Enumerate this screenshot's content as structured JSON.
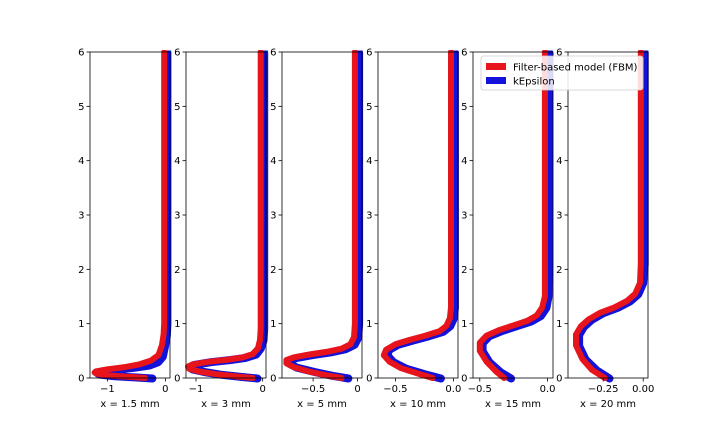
{
  "chart_data": {
    "type": "line",
    "y_range": [
      0,
      6
    ],
    "y_ticks": [
      0,
      1,
      2,
      3,
      4,
      5,
      6
    ],
    "grid": false,
    "legend": {
      "placement": "top-right",
      "entries": [
        {
          "label": "Filter-based model (FBM)",
          "color": "#e8141c"
        },
        {
          "label": "kEpsilon",
          "color": "#1212d8"
        }
      ]
    },
    "panels": [
      {
        "xlabel": "x = 1.5 mm",
        "xlim": [
          -1.3,
          0.08
        ],
        "x_ticks": [
          {
            "v": -1,
            "t": "−1"
          },
          {
            "v": 0,
            "t": "0"
          }
        ],
        "series": [
          {
            "name": "Filter-based model (FBM)",
            "x": [
              -0.35,
              -0.6,
              -0.9,
              -1.15,
              -1.22,
              -1.2,
              -1.0,
              -0.7,
              -0.45,
              -0.25,
              -0.12,
              -0.06,
              -0.03,
              -0.02,
              -0.02,
              -0.02,
              -0.02,
              -0.02
            ],
            "y": [
              0.0,
              0.02,
              0.04,
              0.07,
              0.1,
              0.12,
              0.16,
              0.2,
              0.25,
              0.32,
              0.42,
              0.6,
              0.8,
              1.0,
              1.25,
              2.0,
              4.0,
              6.0
            ]
          },
          {
            "name": "kEpsilon",
            "x": [
              -0.25,
              -0.55,
              -0.9,
              -1.15,
              -1.2,
              -1.1,
              -0.85,
              -0.55,
              -0.3,
              -0.15,
              -0.07,
              -0.03,
              0.0,
              0.01,
              0.01,
              0.01,
              0.01,
              0.01
            ],
            "y": [
              0.0,
              0.02,
              0.04,
              0.07,
              0.1,
              0.13,
              0.16,
              0.2,
              0.24,
              0.3,
              0.4,
              0.6,
              0.8,
              1.0,
              1.25,
              2.0,
              4.0,
              6.0
            ]
          }
        ]
      },
      {
        "xlabel": "x = 3 mm",
        "xlim": [
          -1.15,
          0.05
        ],
        "x_ticks": [
          {
            "v": -1,
            "t": "−1"
          },
          {
            "v": 0,
            "t": "0"
          }
        ],
        "series": [
          {
            "name": "Filter-based model (FBM)",
            "x": [
              -0.15,
              -0.4,
              -0.7,
              -0.95,
              -1.1,
              -1.12,
              -1.05,
              -0.8,
              -0.5,
              -0.3,
              -0.15,
              -0.07,
              -0.04,
              -0.03,
              -0.03,
              -0.03,
              -0.03
            ],
            "y": [
              0.0,
              0.03,
              0.07,
              0.12,
              0.17,
              0.21,
              0.25,
              0.3,
              0.34,
              0.38,
              0.44,
              0.55,
              0.7,
              0.9,
              1.3,
              3.0,
              6.0
            ]
          },
          {
            "name": "kEpsilon",
            "x": [
              -0.1,
              -0.35,
              -0.65,
              -0.9,
              -1.08,
              -1.12,
              -1.05,
              -0.8,
              -0.5,
              -0.28,
              -0.12,
              -0.05,
              -0.01,
              0.0,
              0.0,
              0.0,
              0.0
            ],
            "y": [
              0.0,
              0.03,
              0.07,
              0.12,
              0.17,
              0.21,
              0.25,
              0.3,
              0.34,
              0.38,
              0.44,
              0.55,
              0.7,
              0.9,
              1.3,
              3.0,
              6.0
            ]
          }
        ]
      },
      {
        "xlabel": "x = 5 mm",
        "xlim": [
          -0.85,
          0.05
        ],
        "x_ticks": [
          {
            "v": -0.5,
            "t": "−0.5"
          },
          {
            "v": 0,
            "t": "0"
          }
        ],
        "series": [
          {
            "name": "Filter-based model (FBM)",
            "x": [
              -0.18,
              -0.35,
              -0.55,
              -0.72,
              -0.8,
              -0.8,
              -0.72,
              -0.55,
              -0.35,
              -0.18,
              -0.08,
              -0.04,
              -0.03,
              -0.03,
              -0.03,
              -0.03
            ],
            "y": [
              0.0,
              0.05,
              0.12,
              0.2,
              0.27,
              0.33,
              0.38,
              0.43,
              0.48,
              0.54,
              0.62,
              0.75,
              1.0,
              1.3,
              3.0,
              6.0
            ]
          },
          {
            "name": "kEpsilon",
            "x": [
              -0.12,
              -0.3,
              -0.5,
              -0.7,
              -0.78,
              -0.79,
              -0.7,
              -0.52,
              -0.32,
              -0.15,
              -0.05,
              -0.01,
              0.0,
              0.0,
              0.0,
              0.0
            ],
            "y": [
              0.0,
              0.05,
              0.12,
              0.2,
              0.27,
              0.33,
              0.38,
              0.43,
              0.48,
              0.54,
              0.62,
              0.75,
              1.0,
              1.3,
              3.0,
              6.0
            ]
          }
        ]
      },
      {
        "xlabel": "x = 10 mm",
        "xlim": [
          -0.65,
          0.04
        ],
        "x_ticks": [
          {
            "v": -0.5,
            "t": "−0.5"
          },
          {
            "v": 0,
            "t": "0.0"
          }
        ],
        "series": [
          {
            "name": "Filter-based model (FBM)",
            "x": [
              -0.18,
              -0.3,
              -0.45,
              -0.55,
              -0.6,
              -0.58,
              -0.5,
              -0.38,
              -0.24,
              -0.12,
              -0.06,
              -0.03,
              -0.02,
              -0.02,
              -0.02,
              -0.02
            ],
            "y": [
              0.0,
              0.08,
              0.18,
              0.3,
              0.42,
              0.52,
              0.62,
              0.7,
              0.78,
              0.86,
              0.96,
              1.1,
              1.3,
              1.6,
              3.0,
              6.0
            ]
          },
          {
            "name": "kEpsilon",
            "x": [
              -0.12,
              -0.26,
              -0.42,
              -0.53,
              -0.58,
              -0.57,
              -0.49,
              -0.36,
              -0.22,
              -0.1,
              -0.04,
              -0.01,
              0.0,
              0.0,
              0.0,
              0.0
            ],
            "y": [
              0.0,
              0.08,
              0.18,
              0.3,
              0.42,
              0.52,
              0.62,
              0.7,
              0.78,
              0.86,
              0.96,
              1.1,
              1.3,
              1.6,
              3.0,
              6.0
            ]
          }
        ]
      },
      {
        "xlabel": "x = 15 mm",
        "xlim": [
          -0.55,
          0.04
        ],
        "x_ticks": [
          {
            "v": -0.5,
            "t": "−0.5"
          },
          {
            "v": 0,
            "t": "0.0"
          }
        ],
        "series": [
          {
            "name": "Filter-based model (FBM)",
            "x": [
              -0.32,
              -0.38,
              -0.45,
              -0.5,
              -0.5,
              -0.45,
              -0.36,
              -0.25,
              -0.15,
              -0.08,
              -0.04,
              -0.02,
              -0.02,
              -0.02,
              -0.02
            ],
            "y": [
              0.0,
              0.12,
              0.3,
              0.5,
              0.65,
              0.78,
              0.88,
              0.97,
              1.05,
              1.15,
              1.3,
              1.5,
              1.9,
              3.0,
              6.0
            ]
          },
          {
            "name": "kEpsilon",
            "x": [
              -0.28,
              -0.36,
              -0.44,
              -0.49,
              -0.49,
              -0.44,
              -0.34,
              -0.23,
              -0.13,
              -0.06,
              -0.02,
              -0.005,
              0.0,
              0.0,
              0.0
            ],
            "y": [
              0.0,
              0.12,
              0.3,
              0.5,
              0.65,
              0.78,
              0.88,
              0.97,
              1.05,
              1.15,
              1.3,
              1.5,
              1.9,
              3.0,
              6.0
            ]
          }
        ]
      },
      {
        "xlabel": "x = 20 mm",
        "xlim": [
          -0.47,
          0.03
        ],
        "x_ticks": [
          {
            "v": -0.25,
            "t": "−0.25"
          },
          {
            "v": 0,
            "t": "0.00"
          }
        ],
        "series": [
          {
            "name": "Filter-based model (FBM)",
            "x": [
              -0.24,
              -0.32,
              -0.38,
              -0.42,
              -0.42,
              -0.39,
              -0.34,
              -0.27,
              -0.18,
              -0.1,
              -0.05,
              -0.02,
              -0.015,
              -0.015,
              -0.015
            ],
            "y": [
              0.0,
              0.15,
              0.35,
              0.6,
              0.8,
              0.95,
              1.08,
              1.2,
              1.3,
              1.42,
              1.55,
              1.75,
              2.1,
              3.5,
              6.0
            ]
          },
          {
            "name": "kEpsilon",
            "x": [
              -0.22,
              -0.3,
              -0.37,
              -0.41,
              -0.41,
              -0.38,
              -0.33,
              -0.26,
              -0.17,
              -0.09,
              -0.04,
              -0.01,
              0.0,
              0.0,
              0.0
            ],
            "y": [
              0.0,
              0.15,
              0.35,
              0.6,
              0.8,
              0.95,
              1.08,
              1.2,
              1.3,
              1.42,
              1.55,
              1.75,
              2.1,
              3.5,
              6.0
            ]
          }
        ]
      }
    ]
  }
}
